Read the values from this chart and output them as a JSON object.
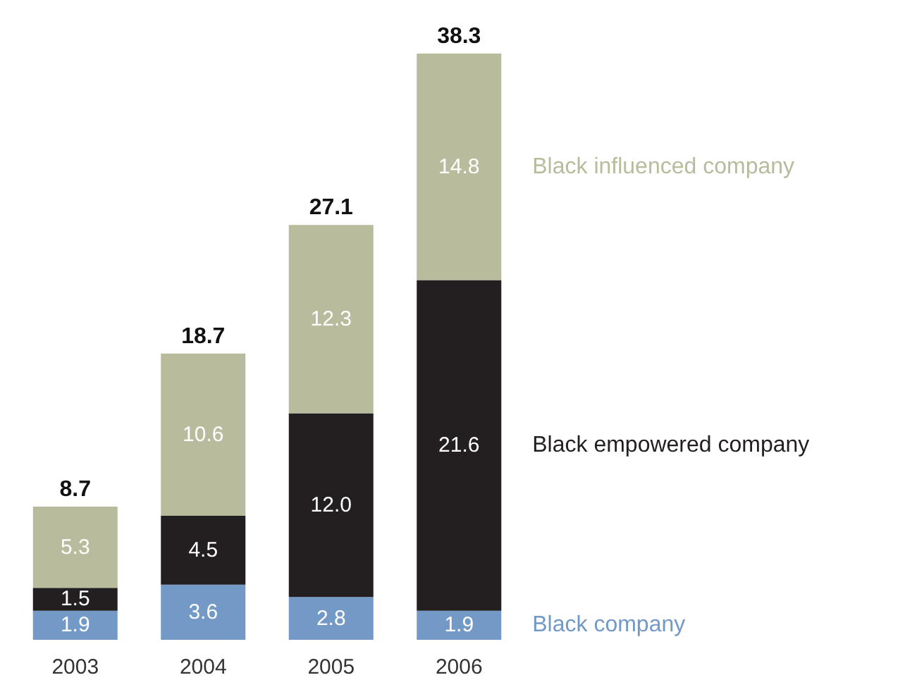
{
  "chart_data": {
    "type": "bar",
    "stacked": true,
    "legend": false,
    "categories": [
      "2003",
      "2004",
      "2005",
      "2006"
    ],
    "series": [
      {
        "name": "Black company",
        "color": "#7399c6",
        "values": [
          1.9,
          3.6,
          2.8,
          1.9
        ],
        "value_labels": [
          "1.9",
          "3.6",
          "2.8",
          "1.9"
        ]
      },
      {
        "name": "Black empowered company",
        "color": "#231f20",
        "values": [
          1.5,
          4.5,
          12.0,
          21.6
        ],
        "value_labels": [
          "1.5",
          "4.5",
          "12.0",
          "21.6"
        ]
      },
      {
        "name": "Black influenced company",
        "color": "#b8bc9c",
        "values": [
          5.3,
          10.6,
          12.3,
          14.8
        ],
        "value_labels": [
          "5.3",
          "10.6",
          "12.3",
          "14.8"
        ]
      }
    ],
    "totals": [
      "8.7",
      "18.7",
      "27.1",
      "38.3"
    ]
  }
}
